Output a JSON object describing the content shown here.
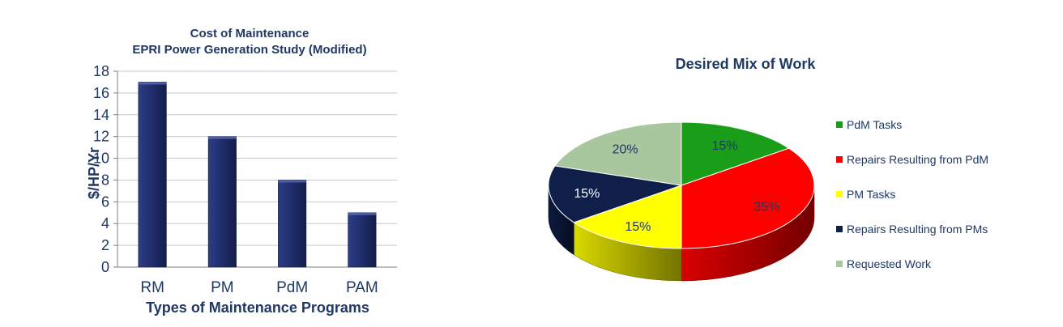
{
  "chart_data": [
    {
      "type": "bar",
      "title": "Cost of Maintenance",
      "subtitle": "EPRI Power Generation Study (Modified)",
      "xlabel": "Types of Maintenance Programs",
      "ylabel": "$/HP/Yr",
      "categories": [
        "RM",
        "PM",
        "PdM",
        "PAM"
      ],
      "values": [
        17,
        12,
        8,
        5
      ],
      "ylim": [
        0,
        18
      ],
      "yticks": [
        "0",
        "2",
        "4",
        "6",
        "8",
        "10",
        "12",
        "14",
        "16",
        "18"
      ],
      "grid": true,
      "bar_color": "#1f2d6b"
    },
    {
      "type": "pie",
      "title": "Desired Mix of Work",
      "legend_position": "right",
      "slices": [
        {
          "name": "PdM Tasks",
          "value": 15,
          "label": "15%",
          "color": "#1a9e1a"
        },
        {
          "name": "Repairs Resulting from PdM",
          "value": 35,
          "label": "35%",
          "color": "#ff0000"
        },
        {
          "name": "PM Tasks",
          "value": 15,
          "label": "15%",
          "color": "#ffff00"
        },
        {
          "name": "Repairs Resulting from PMs",
          "value": 15,
          "label": "15%",
          "color": "#0f1f4a"
        },
        {
          "name": "Requested Work",
          "value": 20,
          "label": "20%",
          "color": "#a9c79e"
        }
      ]
    }
  ]
}
